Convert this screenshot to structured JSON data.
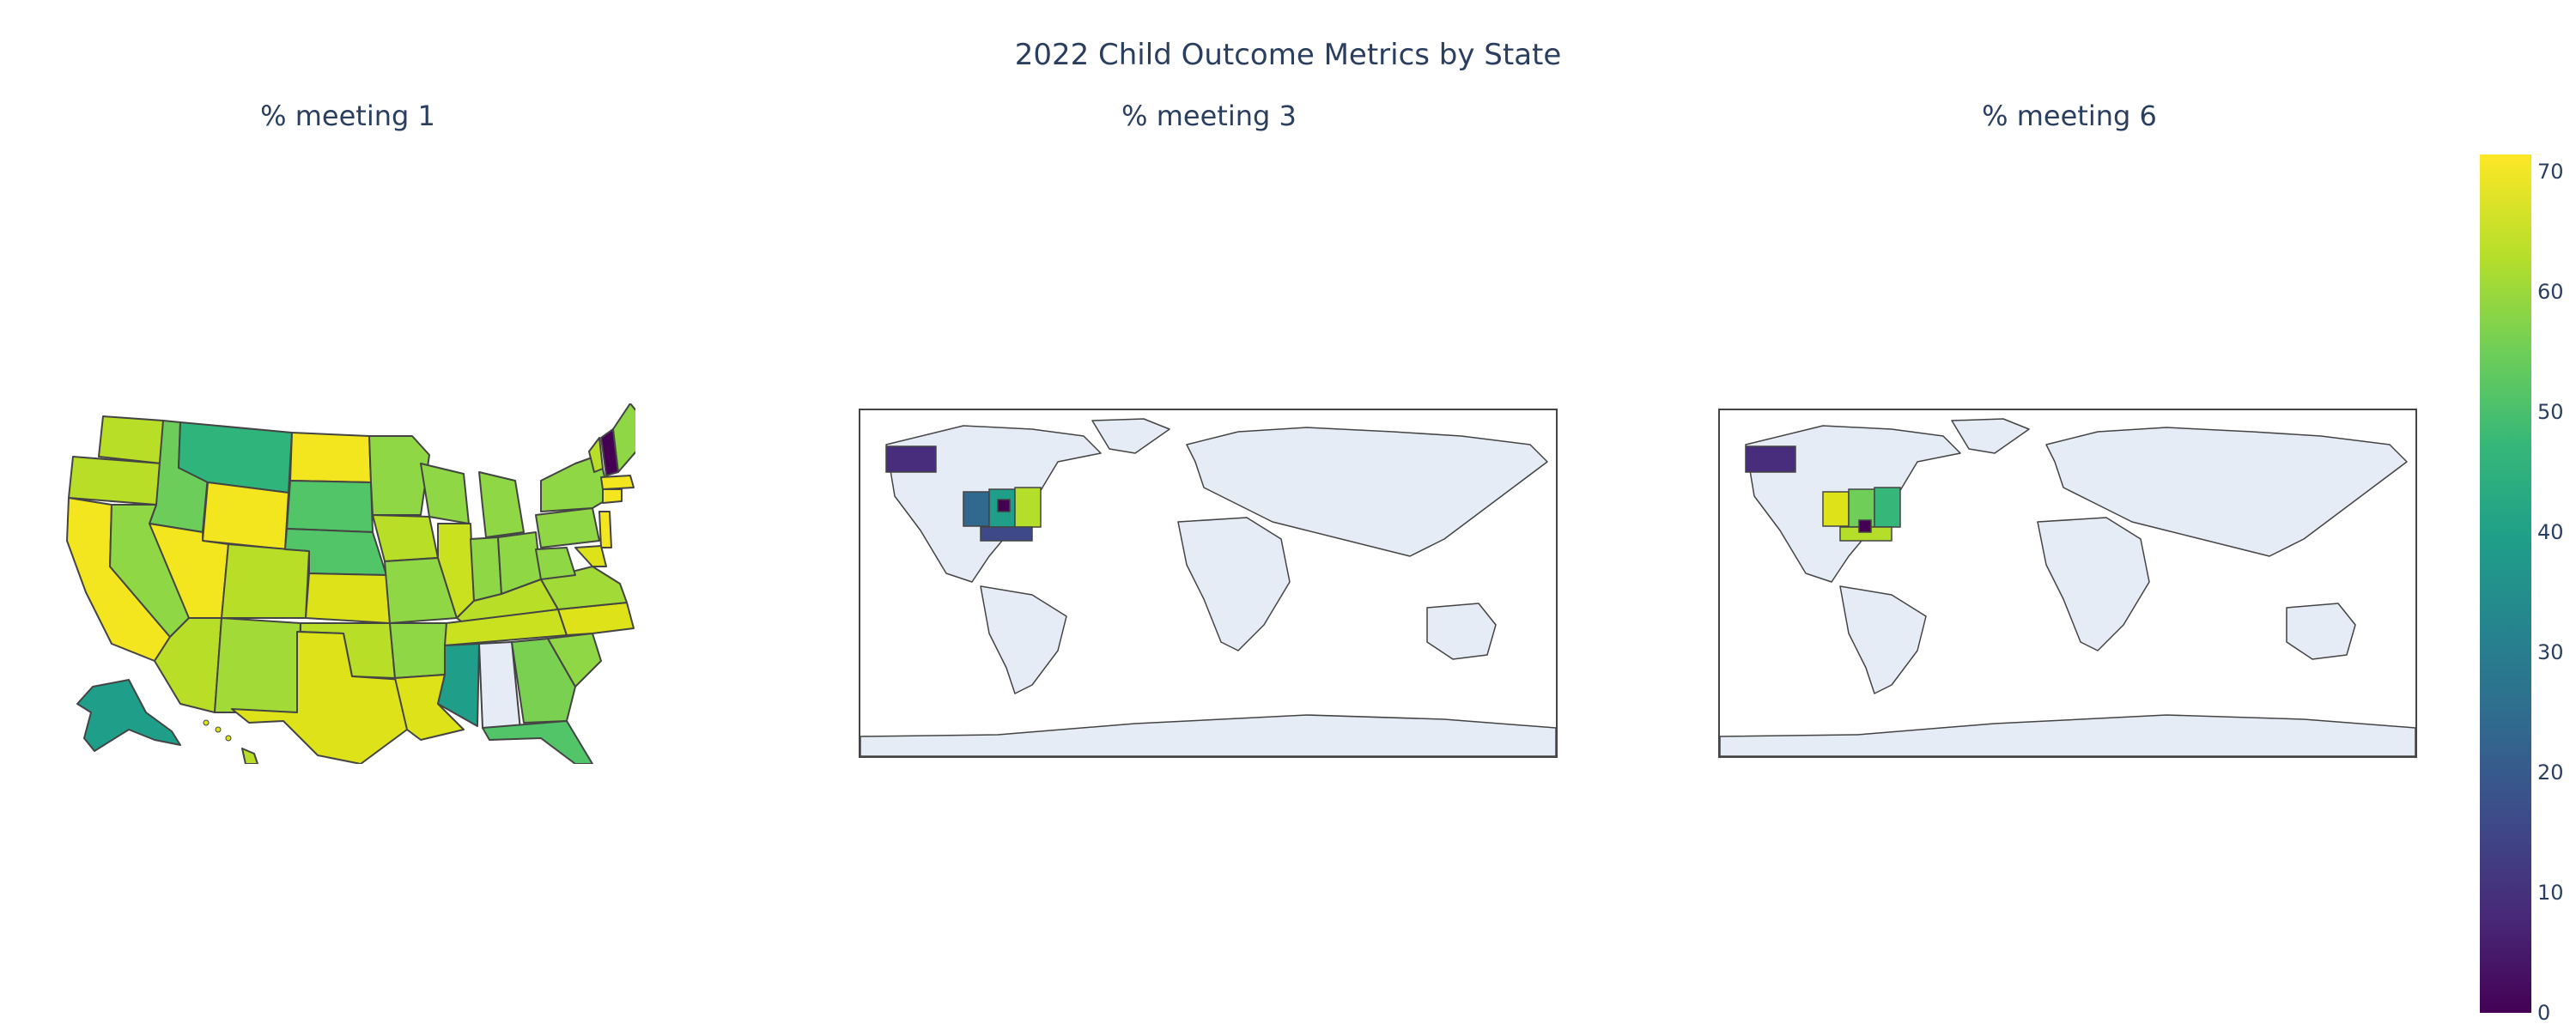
{
  "title": "2022 Child Outcome Metrics by State",
  "subplots": [
    {
      "title": "% meeting 1",
      "scope": "usa"
    },
    {
      "title": "% meeting 3",
      "scope": "world"
    },
    {
      "title": "% meeting 6",
      "scope": "world"
    }
  ],
  "colorbar": {
    "colorscale": "Viridis",
    "range": [
      0,
      71
    ],
    "ticks": [
      "70",
      "60",
      "50",
      "40",
      "30",
      "20",
      "10",
      "0"
    ],
    "colors": [
      "#440154",
      "#482878",
      "#3e4989",
      "#31688e",
      "#26828e",
      "#1f9e89",
      "#35b779",
      "#6ece58",
      "#b5de2b",
      "#fde725"
    ]
  },
  "land_color": "#e5ecf6",
  "border_color": "#444444"
}
